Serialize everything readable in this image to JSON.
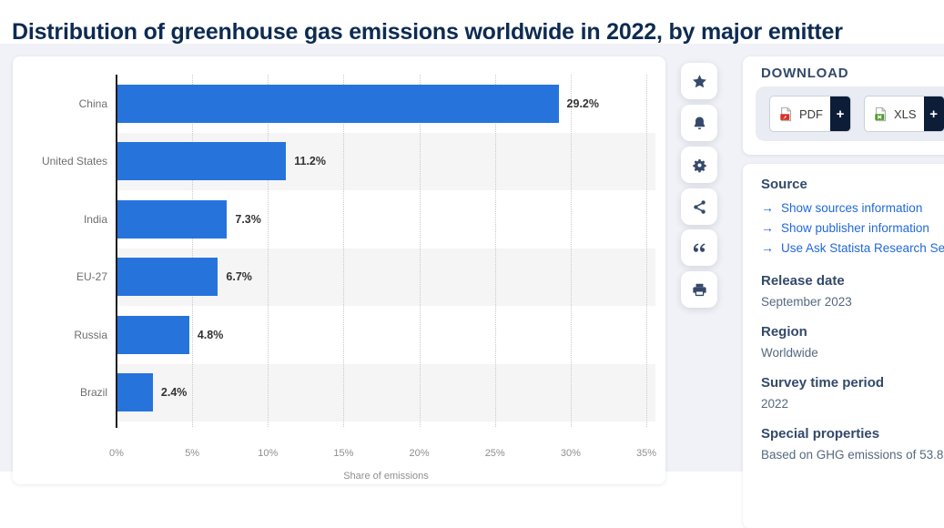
{
  "page": {
    "title": "Distribution of greenhouse gas emissions worldwide in 2022, by major emitter"
  },
  "chart_data": {
    "type": "bar",
    "orientation": "horizontal",
    "title": "Distribution of greenhouse gas emissions worldwide in 2022, by major emitter",
    "categories": [
      "China",
      "United States",
      "India",
      "EU-27",
      "Russia",
      "Brazil"
    ],
    "values": [
      29.2,
      11.2,
      7.3,
      6.7,
      4.8,
      2.4
    ],
    "value_labels": [
      "29.2%",
      "11.2%",
      "7.3%",
      "6.7%",
      "4.8%",
      "2.4%"
    ],
    "xlabel": "Share of emissions",
    "ylabel": "",
    "x_ticks": [
      "0%",
      "5%",
      "10%",
      "15%",
      "20%",
      "25%",
      "30%",
      "35%"
    ],
    "xlim": [
      0,
      35
    ],
    "grid": "vertical-dotted",
    "legend": "none",
    "bar_color": "#2674db",
    "alt_band_color": "#f5f5f6"
  },
  "toolbar": {
    "buttons": [
      {
        "name": "favorite",
        "icon": "star-icon"
      },
      {
        "name": "notification",
        "icon": "bell-icon"
      },
      {
        "name": "settings",
        "icon": "gear-icon"
      },
      {
        "name": "share",
        "icon": "share-icon"
      },
      {
        "name": "cite",
        "icon": "quote-icon"
      },
      {
        "name": "print",
        "icon": "printer-icon"
      }
    ]
  },
  "download": {
    "heading": "DOWNLOAD",
    "buttons": [
      {
        "id": "pdf",
        "label": "PDF",
        "plus": "+"
      },
      {
        "id": "xls",
        "label": "XLS",
        "plus": "+"
      },
      {
        "id": "png",
        "label": "",
        "plus": ""
      }
    ]
  },
  "info": {
    "source": {
      "heading": "Source",
      "arrow": "→",
      "links": [
        "Show sources information",
        "Show publisher information",
        "Use Ask Statista Research Ser"
      ]
    },
    "sections": [
      {
        "heading": "Release date",
        "value": "September 2023"
      },
      {
        "heading": "Region",
        "value": "Worldwide"
      },
      {
        "heading": "Survey time period",
        "value": "2022"
      },
      {
        "heading": "Special properties",
        "value": "Based on GHG emissions of 53.8"
      }
    ]
  }
}
